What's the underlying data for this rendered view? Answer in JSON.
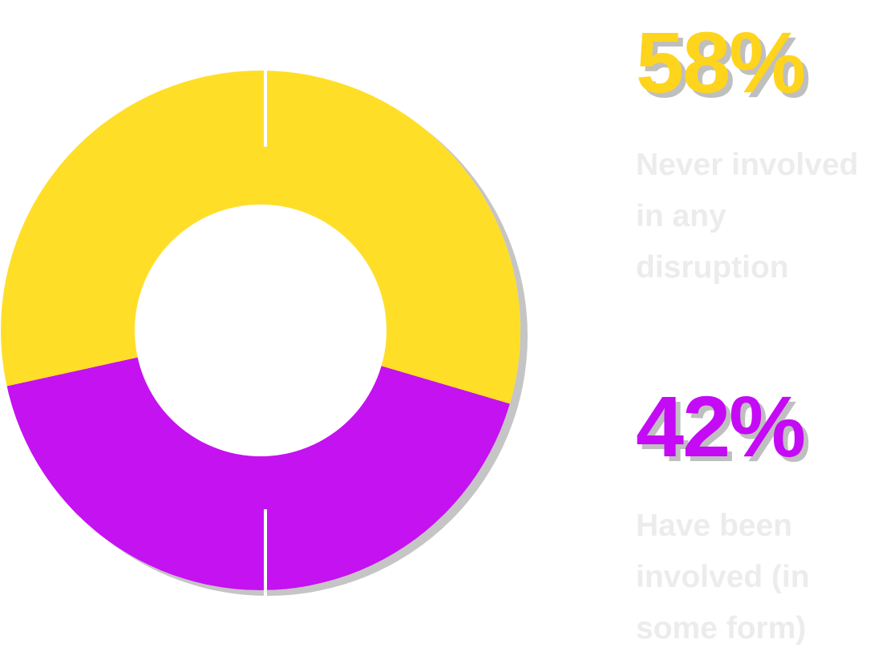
{
  "chart_data": {
    "type": "pie",
    "subtype": "donut",
    "title": "",
    "segments": [
      {
        "label": "Never involved in any disruption",
        "value": 58,
        "color": "#FFDE27",
        "text_color": "#FFD41C"
      },
      {
        "label": "Have been involved (in some form)",
        "value": 42,
        "color": "#C412F0",
        "text_color": "#C50AF5"
      }
    ],
    "unit": "%",
    "donut_hole_ratio": 0.485,
    "rotation_deg": 2,
    "legend_position": "right",
    "leader_lines": true
  },
  "legend": {
    "top": {
      "percent": "58%",
      "lines": [
        "Never involved",
        "in any",
        "disruption"
      ]
    },
    "bottom": {
      "percent": "42%",
      "lines": [
        "Have been",
        "involved (in",
        "some form)"
      ]
    }
  },
  "colors": {
    "background": "#ffffff",
    "leader_line": "#ffffff",
    "description_text": "#ececec"
  }
}
